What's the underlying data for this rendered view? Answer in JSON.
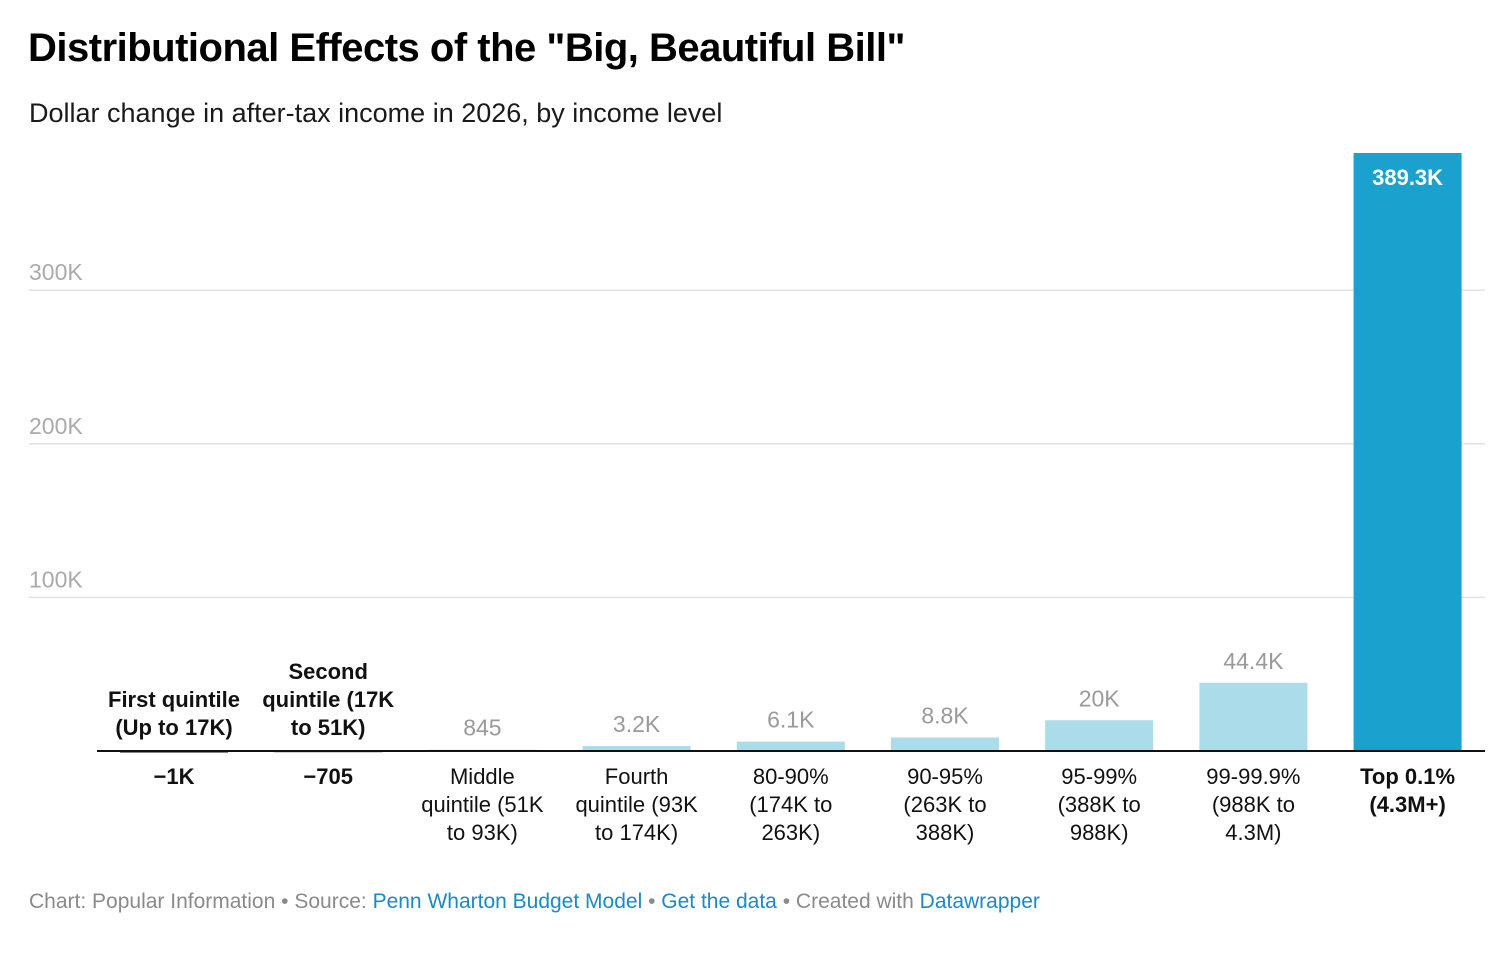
{
  "title": "Distributional Effects of the \"Big, Beautiful Bill\"",
  "subtitle": "Dollar change in after-tax income in 2026, by income level",
  "footer": {
    "chart_prefix": "Chart: Popular Information",
    "separator": "•",
    "source_prefix": "Source:",
    "source_link": "Penn Wharton Budget Model",
    "data_link": "Get the data",
    "created_prefix": "Created with",
    "created_link": "Datawrapper"
  },
  "colors": {
    "highlight": "#1ba1cd",
    "light_bar": "#aadcea",
    "negative_bar": "#1a1a1a",
    "grid": "#e2e2e2",
    "axis": "#111111",
    "tick_text": "#aaaaaa",
    "light_value_text": "#9a9a9a"
  },
  "chart_data": {
    "type": "bar",
    "title": "Distributional Effects of the \"Big, Beautiful Bill\"",
    "subtitle": "Dollar change in after-tax income in 2026, by income level",
    "y_ticks": [
      {
        "value": 100000,
        "label": "100K"
      },
      {
        "value": 200000,
        "label": "200K"
      },
      {
        "value": 300000,
        "label": "300K"
      }
    ],
    "ylim": [
      0,
      389300
    ],
    "grid": true,
    "bars": [
      {
        "category": "First quintile (Up to 17K)",
        "category_lines": [
          "First quintile",
          "(Up to 17K)"
        ],
        "value": -1000,
        "value_label": "−1K",
        "style": "negative"
      },
      {
        "category": "Second quintile (17K to 51K)",
        "category_lines": [
          "Second",
          "quintile (17K",
          "to 51K)"
        ],
        "value": -705,
        "value_label": "−705",
        "style": "negative"
      },
      {
        "category": "Middle quintile (51K to 93K)",
        "category_lines": [
          "Middle",
          "quintile (51K",
          "to 93K)"
        ],
        "value": 845,
        "value_label": "845",
        "style": "light"
      },
      {
        "category": "Fourth quintile (93K to 174K)",
        "category_lines": [
          "Fourth",
          "quintile (93K",
          "to 174K)"
        ],
        "value": 3200,
        "value_label": "3.2K",
        "style": "light"
      },
      {
        "category": "80-90% (174K to 263K)",
        "category_lines": [
          "80-90%",
          "(174K to",
          "263K)"
        ],
        "value": 6100,
        "value_label": "6.1K",
        "style": "light"
      },
      {
        "category": "90-95% (263K to 388K)",
        "category_lines": [
          "90-95%",
          "(263K to",
          "388K)"
        ],
        "value": 8800,
        "value_label": "8.8K",
        "style": "light"
      },
      {
        "category": "95-99% (388K to 988K)",
        "category_lines": [
          "95-99%",
          "(388K to",
          "988K)"
        ],
        "value": 20000,
        "value_label": "20K",
        "style": "light"
      },
      {
        "category": "99-99.9% (988K to 4.3M)",
        "category_lines": [
          "99-99.9%",
          "(988K to",
          "4.3M)"
        ],
        "value": 44400,
        "value_label": "44.4K",
        "style": "light"
      },
      {
        "category": "Top 0.1% (4.3M+)",
        "category_lines": [
          "Top 0.1%",
          "(4.3M+)"
        ],
        "value": 389300,
        "value_label": "389.3K",
        "style": "highlight"
      }
    ]
  }
}
